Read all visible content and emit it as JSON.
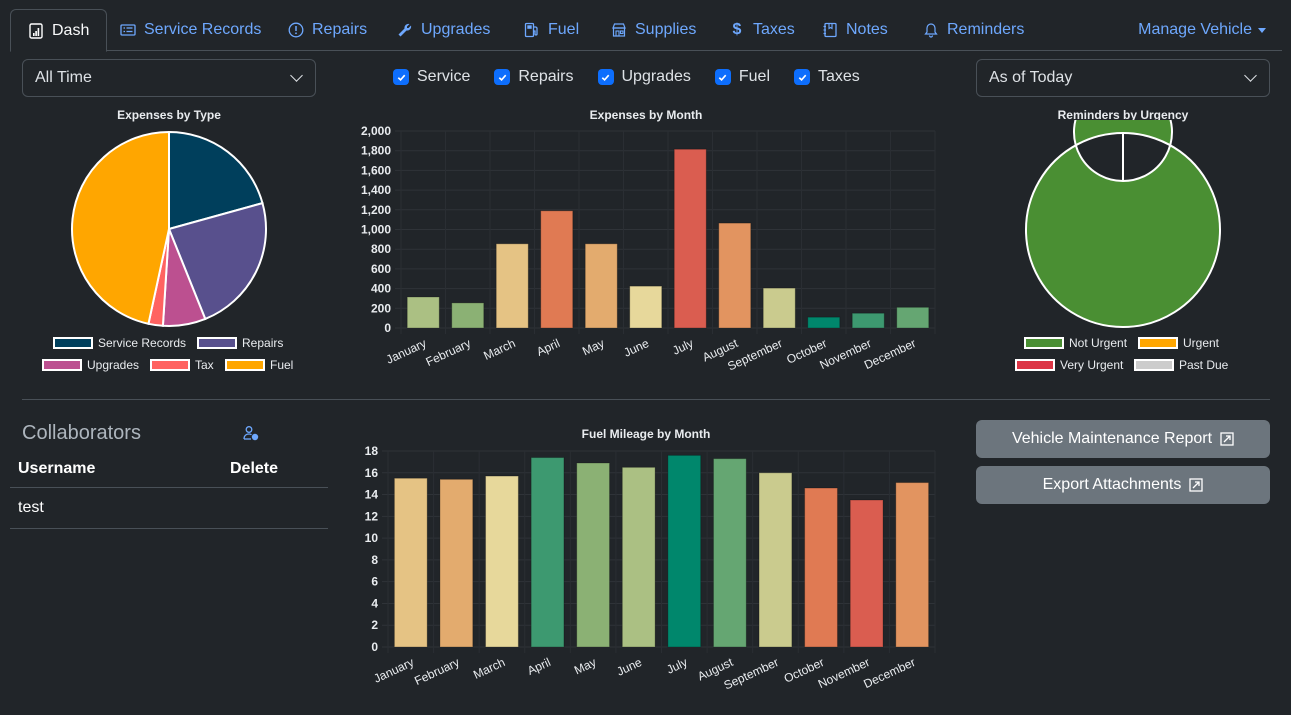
{
  "nav": {
    "tabs": [
      {
        "label": "Dash",
        "icon": "bar-chart-icon",
        "active": true
      },
      {
        "label": "Service Records",
        "icon": "card-list-icon"
      },
      {
        "label": "Repairs",
        "icon": "exclamation-circle-icon"
      },
      {
        "label": "Upgrades",
        "icon": "wrench-icon"
      },
      {
        "label": "Fuel",
        "icon": "fuel-pump-icon"
      },
      {
        "label": "Supplies",
        "icon": "shop-icon"
      },
      {
        "label": "Taxes",
        "icon": "dollar-icon"
      },
      {
        "label": "Notes",
        "icon": "journal-icon"
      },
      {
        "label": "Reminders",
        "icon": "bell-icon"
      }
    ],
    "manage_label": "Manage Vehicle"
  },
  "filters": {
    "period_selected": "All Time",
    "reminder_selected": "As of Today",
    "checkboxes": [
      {
        "label": "Service",
        "checked": true
      },
      {
        "label": "Repairs",
        "checked": true
      },
      {
        "label": "Upgrades",
        "checked": true
      },
      {
        "label": "Fuel",
        "checked": true
      },
      {
        "label": "Taxes",
        "checked": true
      }
    ]
  },
  "collaborators": {
    "title": "Collaborators",
    "headers": [
      "Username",
      "Delete"
    ],
    "rows": [
      {
        "username": "test"
      }
    ]
  },
  "buttons": {
    "report_label": "Vehicle Maintenance Report",
    "export_label": "Export Attachments"
  },
  "chart_data": [
    {
      "type": "pie",
      "title": "Expenses by Type",
      "categories": [
        "Service Records",
        "Repairs",
        "Upgrades",
        "Tax",
        "Fuel"
      ],
      "values": [
        20.7,
        23.2,
        7.1,
        2.4,
        46.6
      ],
      "colors": [
        "#003f5c",
        "#58508d",
        "#bc5090",
        "#ff6361",
        "#ffa600"
      ],
      "legend": "bottom"
    },
    {
      "type": "bar",
      "title": "Expenses by Month",
      "categories": [
        "January",
        "February",
        "March",
        "April",
        "May",
        "June",
        "July",
        "August",
        "September",
        "October",
        "November",
        "December"
      ],
      "values": [
        315,
        255,
        855,
        1190,
        855,
        425,
        1815,
        1065,
        405,
        110,
        150,
        210
      ],
      "colors": [
        "#abc083",
        "#8bb174",
        "#e5c384",
        "#e07a53",
        "#e3ab6e",
        "#e7d89b",
        "#da5d50",
        "#e29460",
        "#cacb8e",
        "#00876c",
        "#3d9970",
        "#65a672"
      ],
      "ylim": [
        0,
        2000
      ],
      "yticks": [
        0,
        200,
        400,
        600,
        800,
        1000,
        1200,
        1400,
        1600,
        1800,
        2000
      ],
      "grid": true,
      "legend": "none"
    },
    {
      "type": "pie",
      "subtype": "doughnut",
      "title": "Reminders by Urgency",
      "categories": [
        "Not Urgent",
        "Urgent",
        "Very Urgent",
        "Past Due"
      ],
      "values": [
        1,
        0,
        0,
        0
      ],
      "colors": [
        "#4a8f33",
        "#ffa600",
        "#dc3545",
        "#cccccc"
      ],
      "legend": "bottom"
    },
    {
      "type": "bar",
      "title": "Fuel Mileage by Month",
      "categories": [
        "January",
        "February",
        "March",
        "April",
        "May",
        "June",
        "July",
        "August",
        "September",
        "October",
        "November",
        "December"
      ],
      "values": [
        15.5,
        15.4,
        15.7,
        17.4,
        16.9,
        16.5,
        17.6,
        17.3,
        16.0,
        14.6,
        13.5,
        15.1
      ],
      "colors": [
        "#e5c384",
        "#e3ab6e",
        "#e7d89b",
        "#3d9970",
        "#8bb174",
        "#abc083",
        "#00876c",
        "#65a672",
        "#cacb8e",
        "#e07a53",
        "#da5d50",
        "#e29460"
      ],
      "ylim": [
        0,
        18
      ],
      "yticks": [
        0,
        2,
        4,
        6,
        8,
        10,
        12,
        14,
        16,
        18
      ],
      "grid": true,
      "legend": "none"
    }
  ]
}
